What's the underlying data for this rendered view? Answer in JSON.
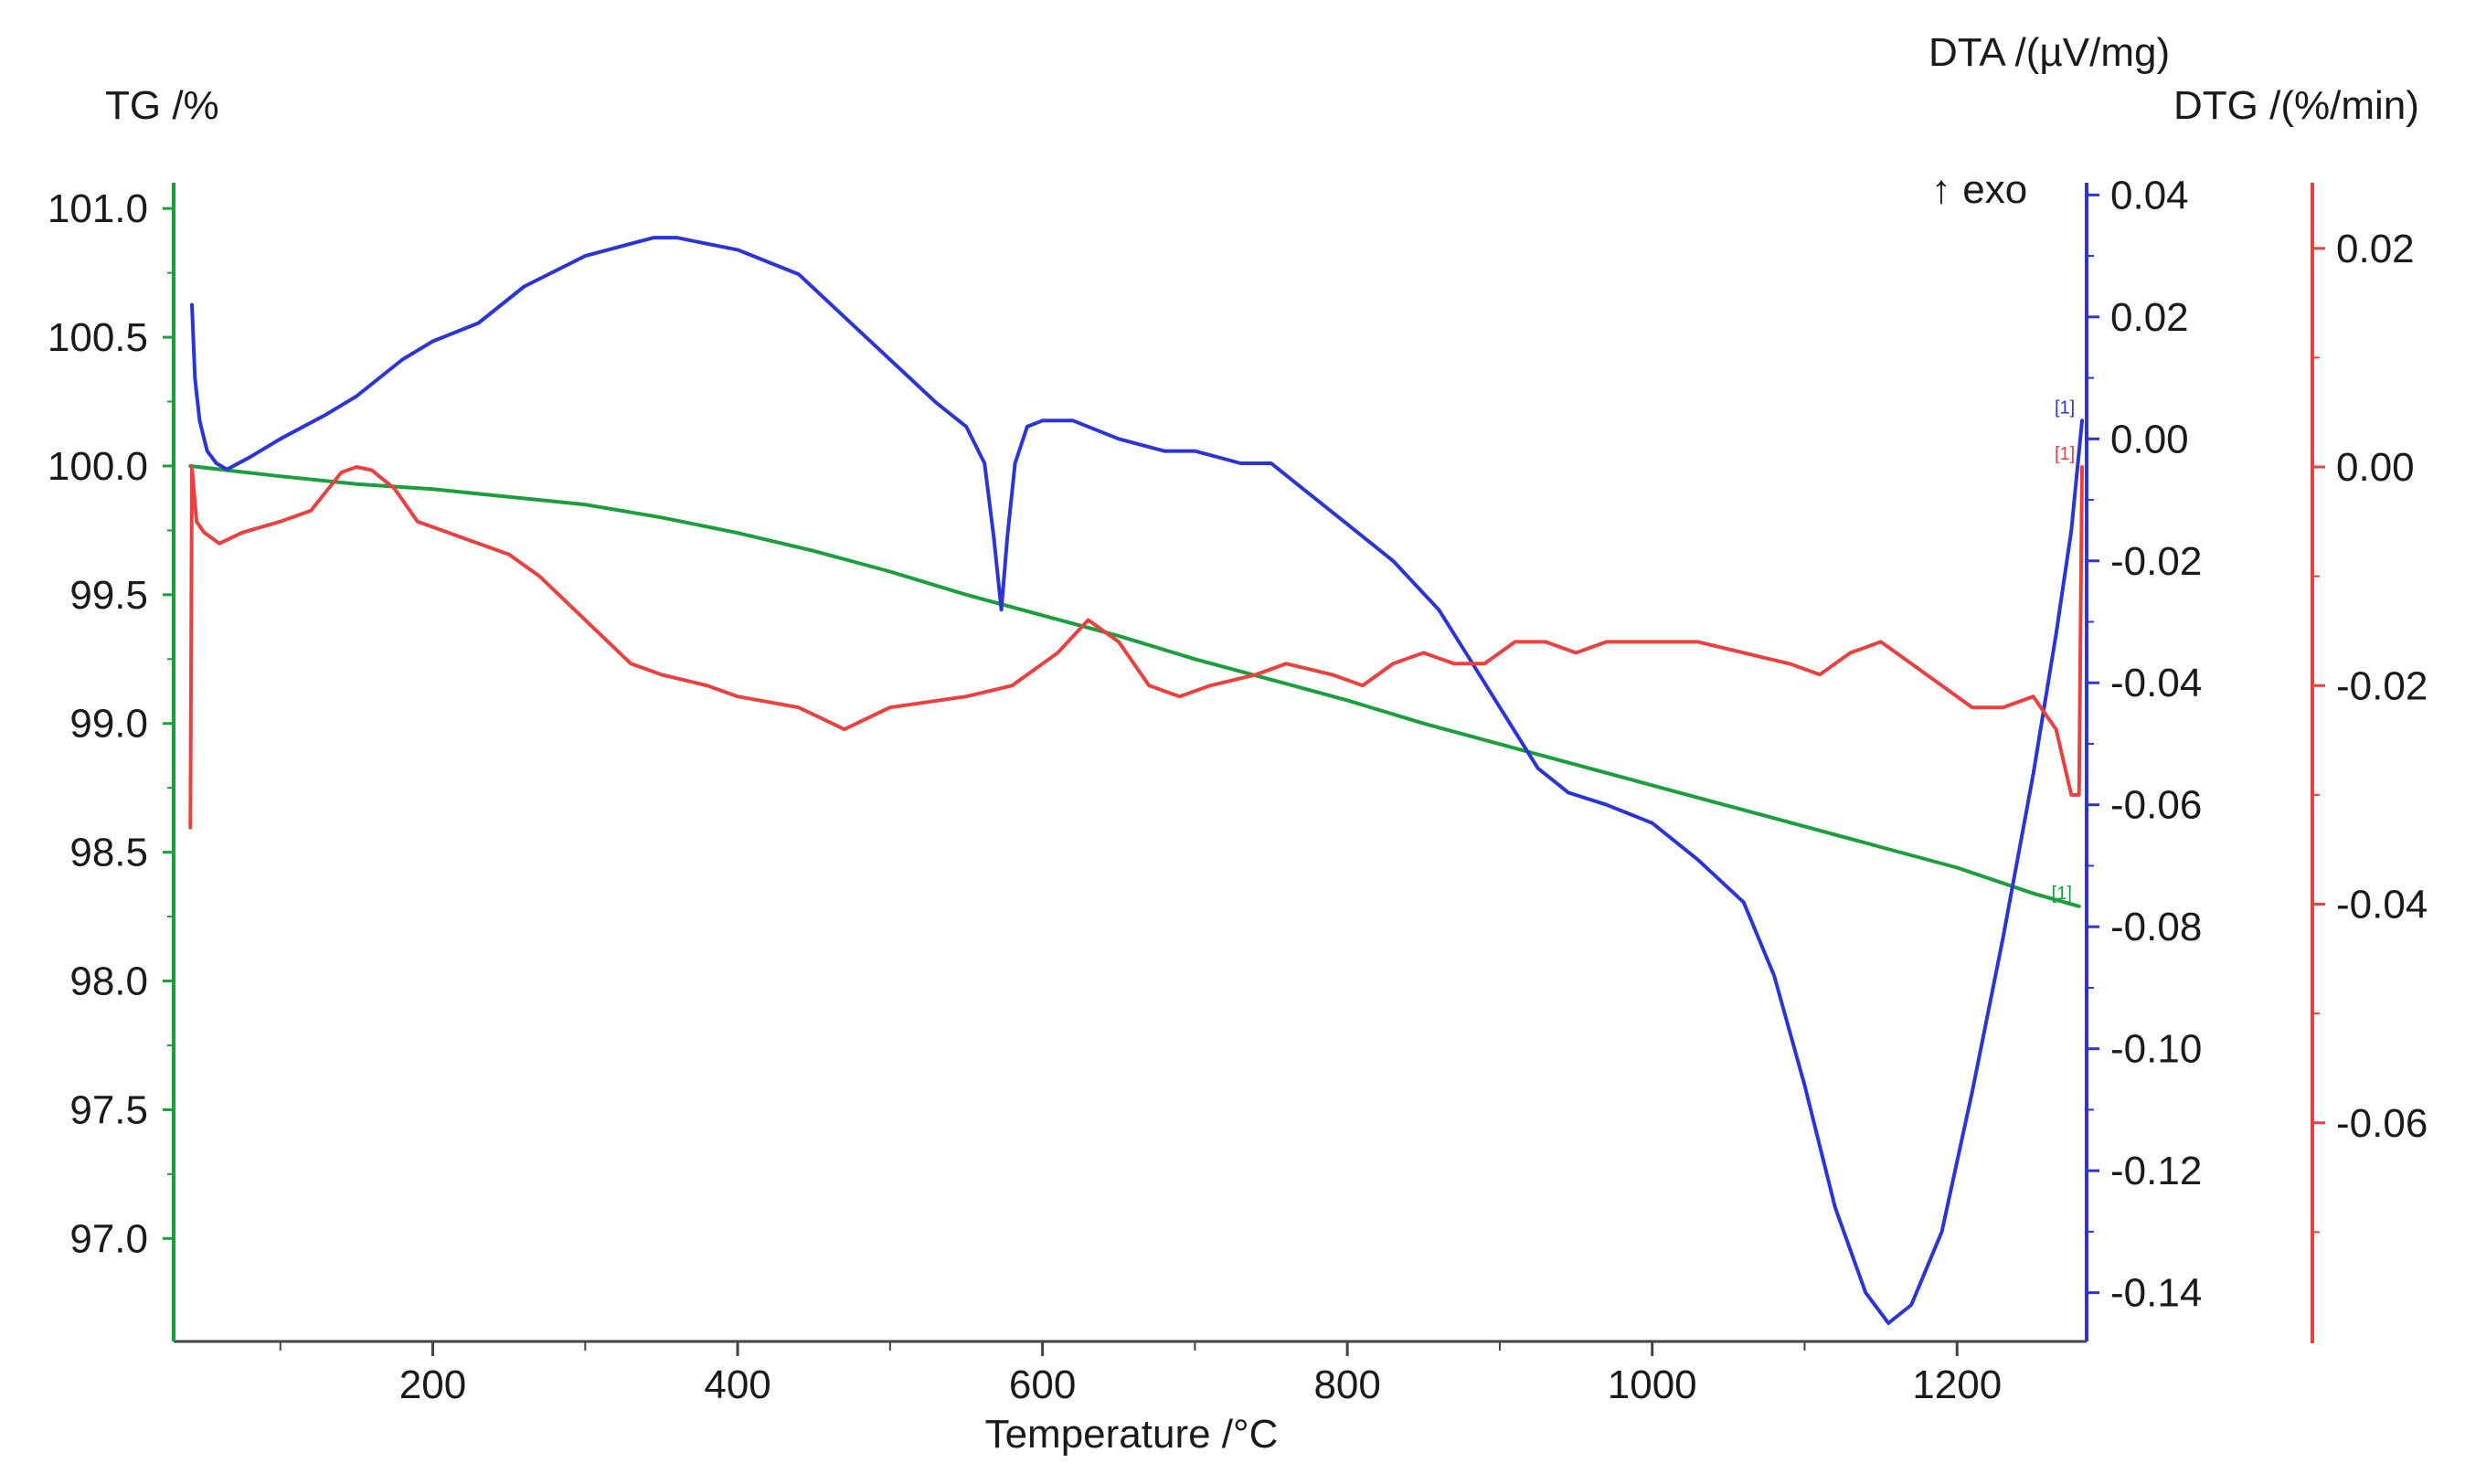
{
  "chart_data": {
    "type": "line",
    "title": "",
    "xlabel": "Temperature /°C",
    "xlim": [
      30,
      1285
    ],
    "x_ticks": [
      200,
      400,
      600,
      800,
      1000,
      1200
    ],
    "x_minor": [
      100,
      300,
      500,
      700,
      900,
      1100
    ],
    "exo_marker": "↑ exo",
    "grid": false,
    "axes": {
      "tg": {
        "label": "TG /%",
        "color": "#1b9e3b",
        "ylim": [
          96.6,
          101.1
        ],
        "ticks": [
          "101.0",
          "100.5",
          "100.0",
          "99.5",
          "99.0",
          "98.5",
          "98.0",
          "97.5",
          "97.0"
        ]
      },
      "dta": {
        "label": "DTA /(µV/mg)",
        "color": "#2b35d6",
        "ylim": [
          -0.148,
          0.042
        ],
        "ticks": [
          "0.04",
          "0.02",
          "0.00",
          "-0.02",
          "-0.04",
          "-0.06",
          "-0.08",
          "-0.10",
          "-0.12",
          "-0.14"
        ]
      },
      "dtg": {
        "label": "DTG /(%/min)",
        "color": "#e8413f",
        "ylim": [
          -0.08,
          0.026
        ],
        "ticks": [
          "0.02",
          "0.00",
          "-0.02",
          "-0.04",
          "-0.06"
        ]
      }
    },
    "series": [
      {
        "name": "TG",
        "axis": "tg",
        "tag": "[1]",
        "points": [
          [
            41,
            100.0
          ],
          [
            100,
            99.96
          ],
          [
            150,
            99.93
          ],
          [
            200,
            99.91
          ],
          [
            250,
            99.88
          ],
          [
            300,
            99.85
          ],
          [
            350,
            99.8
          ],
          [
            400,
            99.74
          ],
          [
            450,
            99.67
          ],
          [
            500,
            99.59
          ],
          [
            550,
            99.5
          ],
          [
            600,
            99.42
          ],
          [
            650,
            99.34
          ],
          [
            700,
            99.25
          ],
          [
            750,
            99.17
          ],
          [
            800,
            99.09
          ],
          [
            850,
            99.0
          ],
          [
            900,
            98.92
          ],
          [
            950,
            98.84
          ],
          [
            1000,
            98.76
          ],
          [
            1050,
            98.68
          ],
          [
            1100,
            98.6
          ],
          [
            1150,
            98.52
          ],
          [
            1200,
            98.44
          ],
          [
            1250,
            98.34
          ],
          [
            1280,
            98.29
          ]
        ]
      },
      {
        "name": "DTA",
        "axis": "dta",
        "tag": "[1]",
        "points": [
          [
            42,
            0.022
          ],
          [
            44,
            0.01
          ],
          [
            47,
            0.003
          ],
          [
            52,
            -0.002
          ],
          [
            58,
            -0.004
          ],
          [
            65,
            -0.005
          ],
          [
            80,
            -0.003
          ],
          [
            100,
            0.0
          ],
          [
            130,
            0.004
          ],
          [
            150,
            0.007
          ],
          [
            180,
            0.013
          ],
          [
            200,
            0.016
          ],
          [
            230,
            0.019
          ],
          [
            260,
            0.025
          ],
          [
            300,
            0.03
          ],
          [
            330,
            0.032
          ],
          [
            345,
            0.033
          ],
          [
            360,
            0.033
          ],
          [
            400,
            0.031
          ],
          [
            440,
            0.027
          ],
          [
            470,
            0.02
          ],
          [
            500,
            0.013
          ],
          [
            530,
            0.006
          ],
          [
            550,
            0.002
          ],
          [
            562,
            -0.004
          ],
          [
            568,
            -0.016
          ],
          [
            573,
            -0.028
          ],
          [
            577,
            -0.016
          ],
          [
            582,
            -0.004
          ],
          [
            590,
            0.002
          ],
          [
            600,
            0.003
          ],
          [
            620,
            0.003
          ],
          [
            650,
            0.0
          ],
          [
            680,
            -0.002
          ],
          [
            700,
            -0.002
          ],
          [
            730,
            -0.004
          ],
          [
            750,
            -0.004
          ],
          [
            770,
            -0.008
          ],
          [
            800,
            -0.014
          ],
          [
            830,
            -0.02
          ],
          [
            860,
            -0.028
          ],
          [
            880,
            -0.036
          ],
          [
            900,
            -0.044
          ],
          [
            925,
            -0.054
          ],
          [
            945,
            -0.058
          ],
          [
            970,
            -0.06
          ],
          [
            1000,
            -0.063
          ],
          [
            1030,
            -0.069
          ],
          [
            1060,
            -0.076
          ],
          [
            1080,
            -0.088
          ],
          [
            1100,
            -0.106
          ],
          [
            1120,
            -0.126
          ],
          [
            1140,
            -0.14
          ],
          [
            1155,
            -0.145
          ],
          [
            1170,
            -0.142
          ],
          [
            1190,
            -0.13
          ],
          [
            1210,
            -0.107
          ],
          [
            1230,
            -0.082
          ],
          [
            1250,
            -0.055
          ],
          [
            1265,
            -0.032
          ],
          [
            1275,
            -0.015
          ],
          [
            1282,
            0.003
          ]
        ]
      },
      {
        "name": "DTG",
        "axis": "dtg",
        "tag": "[1]",
        "points": [
          [
            41,
            -0.033
          ],
          [
            42,
            0.0
          ],
          [
            45,
            -0.005
          ],
          [
            50,
            -0.006
          ],
          [
            60,
            -0.007
          ],
          [
            75,
            -0.006
          ],
          [
            100,
            -0.005
          ],
          [
            120,
            -0.004
          ],
          [
            140,
            -0.0005
          ],
          [
            150,
            0.0
          ],
          [
            160,
            -0.0003
          ],
          [
            175,
            -0.002
          ],
          [
            190,
            -0.005
          ],
          [
            210,
            -0.006
          ],
          [
            230,
            -0.007
          ],
          [
            250,
            -0.008
          ],
          [
            270,
            -0.01
          ],
          [
            300,
            -0.014
          ],
          [
            330,
            -0.018
          ],
          [
            350,
            -0.019
          ],
          [
            380,
            -0.02
          ],
          [
            400,
            -0.021
          ],
          [
            440,
            -0.022
          ],
          [
            470,
            -0.024
          ],
          [
            500,
            -0.022
          ],
          [
            550,
            -0.021
          ],
          [
            580,
            -0.02
          ],
          [
            610,
            -0.017
          ],
          [
            630,
            -0.014
          ],
          [
            650,
            -0.016
          ],
          [
            670,
            -0.02
          ],
          [
            690,
            -0.021
          ],
          [
            710,
            -0.02
          ],
          [
            740,
            -0.019
          ],
          [
            760,
            -0.018
          ],
          [
            790,
            -0.019
          ],
          [
            810,
            -0.02
          ],
          [
            830,
            -0.018
          ],
          [
            850,
            -0.017
          ],
          [
            870,
            -0.018
          ],
          [
            890,
            -0.018
          ],
          [
            910,
            -0.016
          ],
          [
            930,
            -0.016
          ],
          [
            950,
            -0.017
          ],
          [
            970,
            -0.016
          ],
          [
            1000,
            -0.016
          ],
          [
            1030,
            -0.016
          ],
          [
            1060,
            -0.017
          ],
          [
            1090,
            -0.018
          ],
          [
            1110,
            -0.019
          ],
          [
            1130,
            -0.017
          ],
          [
            1150,
            -0.016
          ],
          [
            1170,
            -0.018
          ],
          [
            1190,
            -0.02
          ],
          [
            1210,
            -0.022
          ],
          [
            1230,
            -0.022
          ],
          [
            1250,
            -0.021
          ],
          [
            1265,
            -0.024
          ],
          [
            1275,
            -0.03
          ],
          [
            1280,
            -0.03
          ],
          [
            1282,
            0.0
          ]
        ]
      }
    ]
  }
}
